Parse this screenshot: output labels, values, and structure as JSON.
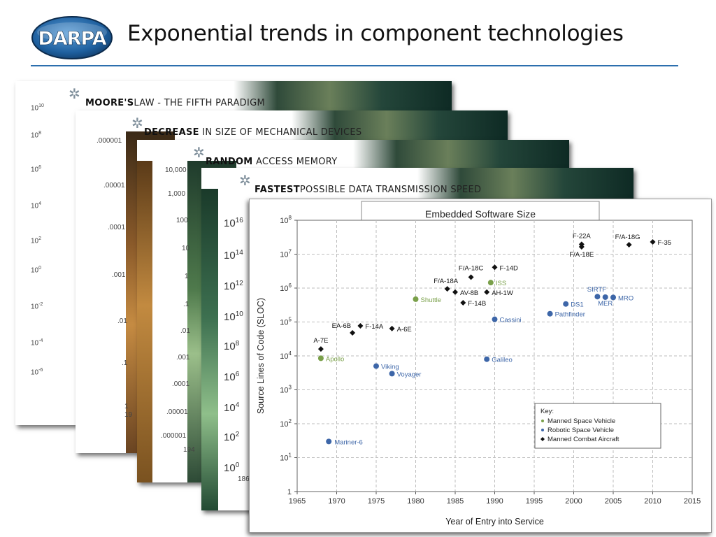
{
  "header": {
    "logo_text": "DARPA",
    "title": "Exponential trends in component technologies"
  },
  "cards": [
    {
      "heading_bold": "MOORE'S",
      "heading_rest": "LAW - THE FIFTH PARADIGM",
      "ticks": [
        "10",
        "10",
        "10",
        "10",
        "10",
        "10",
        "10",
        "10",
        "10"
      ],
      "exps": [
        "10",
        "8",
        "6",
        "4",
        "2",
        "0",
        "-2",
        "-4",
        "-6"
      ]
    },
    {
      "heading_bold": "DECREASE",
      "heading_rest": " IN SIZE OF MECHANICAL DEVICES",
      "ticks": [
        ".000001",
        ".00001",
        ".0001",
        ".001",
        ".01",
        ".1",
        "1"
      ],
      "footer_fragment": "19"
    },
    {
      "heading_bold": "RANDOM",
      "heading_rest": " ACCESS MEMORY",
      "ticks": [
        "10,000",
        "1,000",
        "100",
        "10",
        "1",
        ".1",
        ".01",
        ".001",
        ".0001",
        ".00001",
        ".000001"
      ],
      "footer_fragment": "194"
    },
    {
      "heading_bold": "FASTEST",
      "heading_rest": "POSSIBLE DATA TRANSMISSION SPEED",
      "ticks": [
        "10",
        "10",
        "10",
        "10",
        "10",
        "10",
        "10",
        "10",
        "10"
      ],
      "exps": [
        "16",
        "14",
        "12",
        "10",
        "8",
        "6",
        "4",
        "2",
        "0"
      ],
      "footer_fragment": "186"
    }
  ],
  "colors": {
    "manned_space": "#7aa04a",
    "robotic_space": "#3d66a8",
    "combat_aircraft": "#111111",
    "header_rule": "#2c6fae"
  },
  "chart_data": {
    "type": "scatter",
    "title": "Embedded Software Size",
    "xlabel": "Year of Entry into Service",
    "ylabel": "Source Lines of Code (SLOC)",
    "xlim": [
      1965,
      2015
    ],
    "x_ticks": [
      "1965",
      "1970",
      "1975",
      "1980",
      "1985",
      "1990",
      "1995",
      "2000",
      "2005",
      "2010",
      "2015"
    ],
    "ylim": [
      1,
      100000000
    ],
    "y_scale": "log",
    "y_tick_labels": [
      {
        "base": "1",
        "exp": ""
      },
      {
        "base": "10",
        "exp": "1"
      },
      {
        "base": "10",
        "exp": "2"
      },
      {
        "base": "10",
        "exp": "3"
      },
      {
        "base": "10",
        "exp": "4"
      },
      {
        "base": "10",
        "exp": "5"
      },
      {
        "base": "10",
        "exp": "6"
      },
      {
        "base": "10",
        "exp": "7"
      },
      {
        "base": "10",
        "exp": "8"
      }
    ],
    "grid": true,
    "legend": {
      "placement": "bottom-right",
      "title": "Key:",
      "entries": [
        "Manned Space Vehicle",
        "Robotic Space Vehicle",
        "Manned Combat Aircraft"
      ]
    },
    "series": [
      {
        "name": "Manned Space Vehicle",
        "marker": "circle",
        "color": "#7aa04a",
        "points": [
          {
            "label": "Apollo",
            "x": 1968,
            "y": 8500
          },
          {
            "label": "Shuttle",
            "x": 1980,
            "y": 470000
          },
          {
            "label": "ISS",
            "x": 1989.5,
            "y": 1450000
          }
        ]
      },
      {
        "name": "Robotic Space Vehicle",
        "marker": "circle",
        "color": "#3d66a8",
        "points": [
          {
            "label": "Mariner-6",
            "x": 1969,
            "y": 30
          },
          {
            "label": "Viking",
            "x": 1975,
            "y": 5000
          },
          {
            "label": "Voyager",
            "x": 1977,
            "y": 3000
          },
          {
            "label": "Galileo",
            "x": 1989,
            "y": 8000
          },
          {
            "label": "Cassini",
            "x": 1990,
            "y": 120000
          },
          {
            "label": "Pathfinder",
            "x": 1997,
            "y": 175000
          },
          {
            "label": "DS1",
            "x": 1999,
            "y": 340000
          },
          {
            "label": "SIRTF",
            "x": 2003,
            "y": 560000
          },
          {
            "label": "MER",
            "x": 2004,
            "y": 540000
          },
          {
            "label": "MRO",
            "x": 2005,
            "y": 530000
          }
        ]
      },
      {
        "name": "Manned Combat Aircraft",
        "marker": "diamond",
        "color": "#111111",
        "points": [
          {
            "label": "A-7E",
            "x": 1968,
            "y": 16000
          },
          {
            "label": "EA-6B",
            "x": 1972,
            "y": 48000
          },
          {
            "label": "F-14A",
            "x": 1973,
            "y": 77000
          },
          {
            "label": "A-6E",
            "x": 1977,
            "y": 64000
          },
          {
            "label": "F/A-18A",
            "x": 1984,
            "y": 950000
          },
          {
            "label": "AV-8B",
            "x": 1985,
            "y": 760000
          },
          {
            "label": "F-14B",
            "x": 1986,
            "y": 370000
          },
          {
            "label": "F/A-18C",
            "x": 1987,
            "y": 2100000
          },
          {
            "label": "AH-1W",
            "x": 1989,
            "y": 760000
          },
          {
            "label": "F-14D",
            "x": 1990,
            "y": 4100000
          },
          {
            "label": "F-22A",
            "x": 2001,
            "y": 19500000
          },
          {
            "label": "F/A-18E",
            "x": 2001,
            "y": 16500000
          },
          {
            "label": "F/A-18G",
            "x": 2007,
            "y": 19000000
          },
          {
            "label": "F-35",
            "x": 2010,
            "y": 23000000
          }
        ]
      }
    ]
  }
}
